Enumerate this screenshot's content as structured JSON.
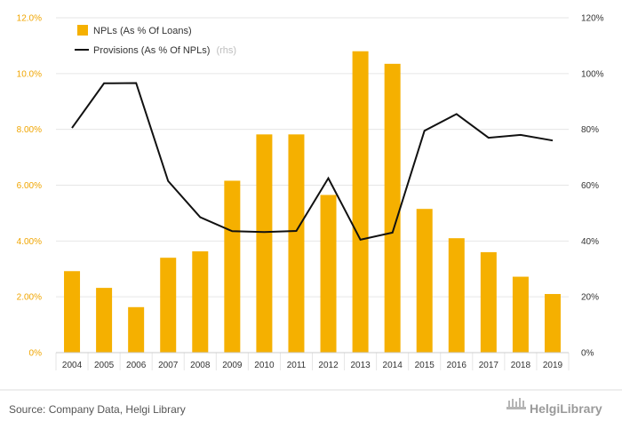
{
  "chart_data": {
    "type": "bar",
    "categories": [
      "2004",
      "2005",
      "2006",
      "2007",
      "2008",
      "2009",
      "2010",
      "2011",
      "2012",
      "2013",
      "2014",
      "2015",
      "2016",
      "2017",
      "2018",
      "2019"
    ],
    "series": [
      {
        "name": "NPLs (As % Of Loans)",
        "axis": "left",
        "type": "bar",
        "color": "#f5b000",
        "values": [
          2.92,
          2.32,
          1.63,
          3.4,
          3.63,
          6.16,
          7.82,
          7.82,
          5.65,
          10.8,
          10.35,
          5.15,
          4.1,
          3.6,
          2.72,
          2.1
        ]
      },
      {
        "name": "Provisions (As % Of NPLs)",
        "note": "(rhs)",
        "axis": "right",
        "type": "line",
        "color": "#111111",
        "values": [
          80.5,
          96.5,
          96.6,
          61.5,
          48.5,
          43.5,
          43.2,
          43.6,
          62.5,
          40.5,
          43,
          79.5,
          85.5,
          77,
          78,
          76
        ]
      }
    ],
    "left_axis": {
      "ylim": [
        0,
        12
      ],
      "ticks": [
        "0%",
        "2.00%",
        "4.00%",
        "6.00%",
        "8.00%",
        "10.0%",
        "12.0%"
      ]
    },
    "right_axis": {
      "ylim": [
        0,
        120
      ],
      "ticks": [
        "0%",
        "20%",
        "40%",
        "60%",
        "80%",
        "100%",
        "120%"
      ]
    },
    "grid": true,
    "legend_position": "top-left"
  },
  "footer": {
    "source": "Source: Company Data, Helgi Library",
    "brand": "HelgiLibrary"
  }
}
